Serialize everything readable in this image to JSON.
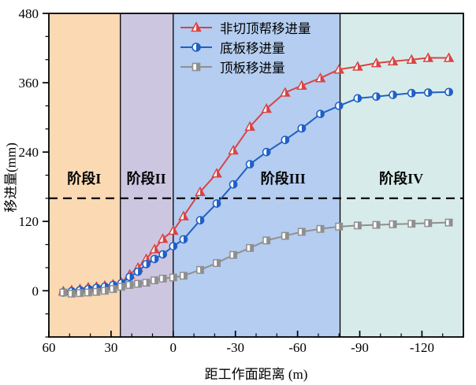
{
  "chart_data": {
    "type": "line",
    "title": "",
    "xlabel": "距工作面距离 (m)",
    "ylabel": "移进量(mm)",
    "xlim": [
      60,
      -140
    ],
    "ylim": [
      -80,
      480
    ],
    "x_major_ticks": [
      60,
      30,
      0,
      -30,
      -60,
      -90,
      -120
    ],
    "x_minor_step": 10,
    "y_major_ticks": [
      0,
      120,
      240,
      360,
      480
    ],
    "y_minor_step": 40,
    "grid": false,
    "legend_position": "top-inside",
    "threshold_line": {
      "y": 160,
      "style": "dashed",
      "color": "#000000"
    },
    "zones": [
      {
        "label": "阶段I",
        "from": 60,
        "to": 25.5,
        "color": "#FBD9B3",
        "label_x": 43
      },
      {
        "label": "阶段II",
        "from": 25.5,
        "to": 0,
        "color": "#CDC6E1",
        "label_x": 13
      },
      {
        "label": "阶段III",
        "from": 0,
        "to": -80.5,
        "color": "#B4CDF0",
        "label_x": -53
      },
      {
        "label": "阶段IV",
        "from": -80.5,
        "to": -140,
        "color": "#D7ECEA",
        "label_x": -110
      }
    ],
    "zone_label_y": 195,
    "zone_divider_color": "#000000",
    "x": [
      53,
      49,
      45,
      41,
      37,
      33,
      29,
      25,
      21,
      17,
      13,
      9,
      5,
      0,
      -5,
      -13,
      -21,
      -29,
      -37,
      -45,
      -54,
      -62,
      -71,
      -80,
      -89,
      -98,
      -106,
      -115,
      -123,
      -133
    ],
    "series": [
      {
        "name": "非切顶帮移进量",
        "color": "#D94444",
        "marker": "triangle-half",
        "values": [
          -1,
          1,
          3,
          6,
          7,
          9,
          11,
          14,
          28,
          40,
          55,
          72,
          90,
          104,
          129,
          171,
          203,
          243,
          284,
          315,
          343,
          355,
          368,
          383,
          388,
          394,
          397,
          400,
          403,
          403
        ]
      },
      {
        "name": "底板移进量",
        "color": "#1E60C6",
        "marker": "circle-half",
        "values": [
          -3,
          -1,
          1,
          3,
          5,
          7,
          10,
          13,
          24,
          33,
          46,
          55,
          63,
          77,
          89,
          122,
          151,
          184,
          219,
          240,
          261,
          281,
          306,
          320,
          333,
          336,
          339,
          342,
          343,
          344
        ]
      },
      {
        "name": "顶板移进量",
        "color": "#8F8F8F",
        "marker": "square-half",
        "values": [
          -3,
          -5,
          -4,
          -3,
          -2,
          0,
          3,
          7,
          10,
          12,
          14,
          18,
          21,
          23,
          26,
          36,
          48,
          62,
          74,
          87,
          95,
          102,
          107,
          111,
          113,
          114,
          115,
          116,
          117,
          118
        ]
      }
    ]
  }
}
